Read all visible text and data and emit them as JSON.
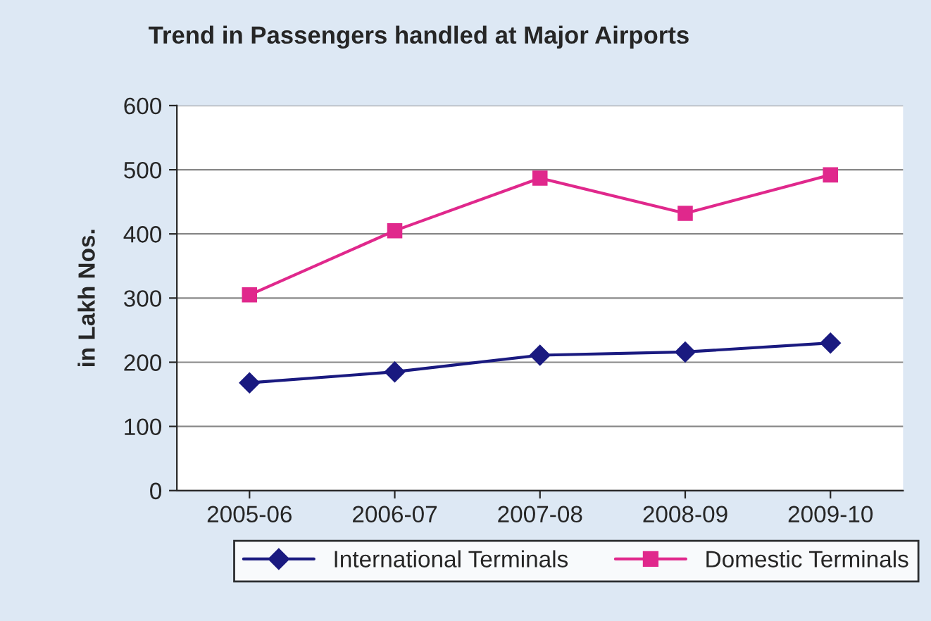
{
  "chart_data": {
    "type": "line",
    "title": "Trend in Passengers handled at Major Airports",
    "ylabel": "in Lakh Nos.",
    "categories": [
      "2005-06",
      "2006-07",
      "2007-08",
      "2008-09",
      "2009-10"
    ],
    "series": [
      {
        "name": "International Terminals",
        "color": "#1a1a80",
        "marker": "diamond",
        "values": [
          168,
          185,
          211,
          216,
          230
        ]
      },
      {
        "name": "Domestic Terminals",
        "color": "#e0288c",
        "marker": "square",
        "values": [
          305,
          405,
          487,
          432,
          492
        ]
      }
    ],
    "ylim": [
      0,
      600
    ],
    "yticks": [
      0,
      100,
      200,
      300,
      400,
      500,
      600
    ],
    "grid": "y",
    "legend": "bottom",
    "line_style": "solid"
  }
}
